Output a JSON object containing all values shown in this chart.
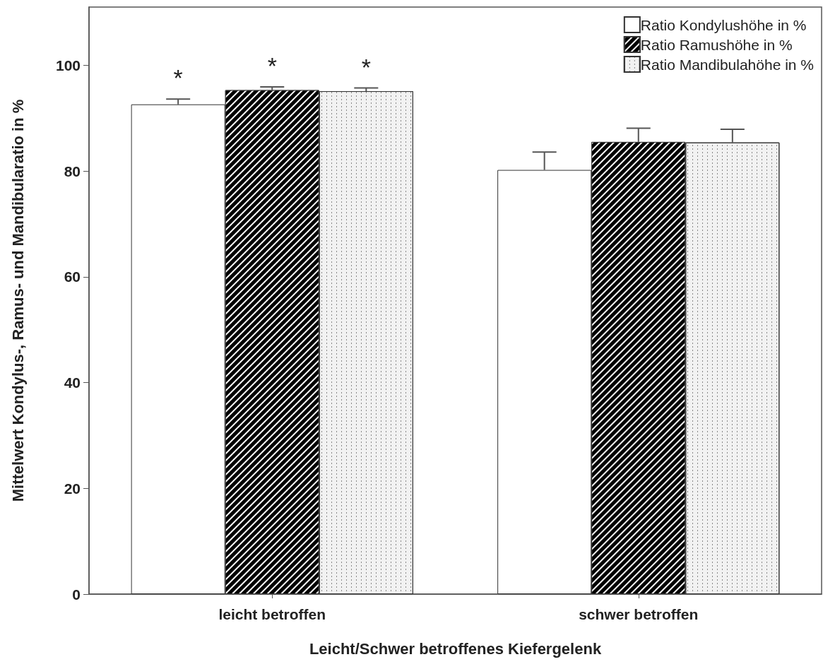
{
  "chart_data": {
    "type": "bar",
    "xlabel": "Leicht/Schwer betroffenes Kiefergelenk",
    "ylabel": "Mittelwert Kondylus-, Ramus- und Mandibularatio in %",
    "categories": [
      "leicht betroffen",
      "schwer betroffen"
    ],
    "series": [
      {
        "name": "Ratio Kondylushöhe in %",
        "color": "#ffffff",
        "values": [
          92.6,
          80.2
        ],
        "errors": [
          [
            92.6,
            93.6
          ],
          [
            80.2,
            83.6
          ]
        ]
      },
      {
        "name": "Ratio Ramushöhe in %",
        "color": "#000000",
        "values": [
          95.3,
          85.5
        ],
        "errors": [
          [
            95.3,
            95.9
          ],
          [
            85.5,
            88.1
          ]
        ]
      },
      {
        "name": "Ratio Mandibulahöhe in %",
        "color": "#f2f2f2",
        "values": [
          95.1,
          85.4
        ],
        "errors": [
          [
            95.1,
            95.7
          ],
          [
            85.4,
            87.9
          ]
        ]
      }
    ],
    "ylim": [
      0,
      111
    ],
    "yticks": [
      0,
      20,
      40,
      60,
      80,
      100
    ],
    "grid": false,
    "legend": "top right",
    "annotations": [
      "*",
      "*",
      "*"
    ]
  }
}
